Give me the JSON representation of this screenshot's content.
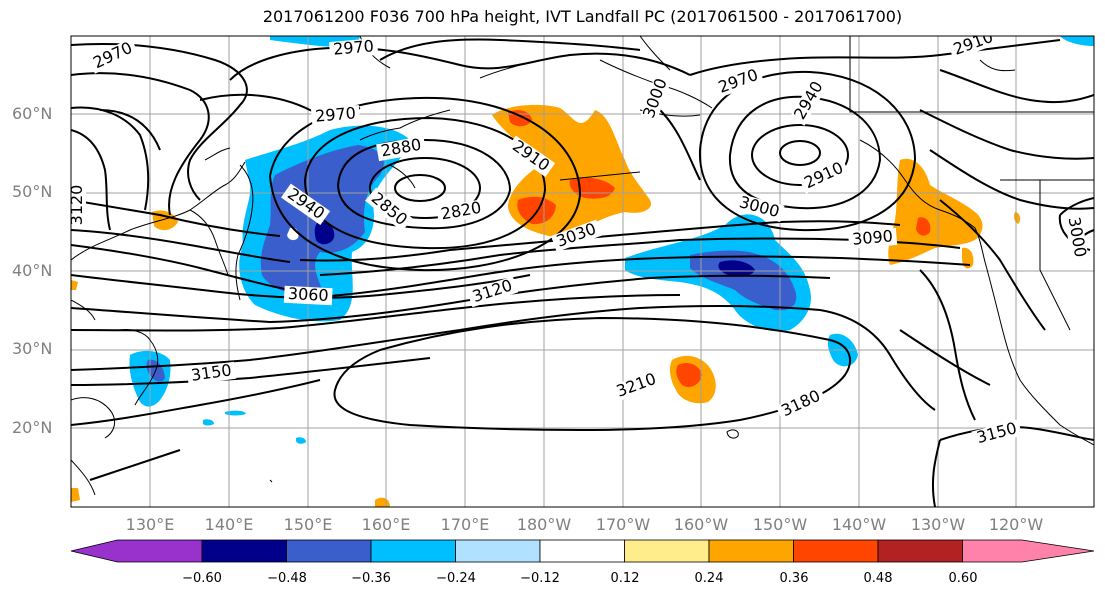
{
  "title": "2017061200 F036 700 hPa height, IVT Landfall PC (2017061500 - 2017061700)",
  "lat_labels": [
    "60°N",
    "50°N",
    "40°N",
    "30°N",
    "20°N"
  ],
  "lon_labels": [
    "130°E",
    "140°E",
    "150°E",
    "160°E",
    "170°E",
    "180°W",
    "170°W",
    "160°W",
    "150°W",
    "140°W",
    "130°W",
    "120°W"
  ],
  "contour_labels": [
    "2970",
    "2970",
    "2970",
    "2970",
    "2910",
    "2910",
    "2910",
    "2880",
    "2850",
    "2820",
    "2940",
    "2940",
    "3000",
    "3000",
    "3000",
    "3030",
    "3060",
    "3090",
    "3120",
    "3120",
    "3150",
    "3150",
    "3180",
    "3210"
  ],
  "colorbar": {
    "ticks": [
      "−0.60",
      "−0.48",
      "−0.36",
      "−0.24",
      "−0.12",
      "0.12",
      "0.24",
      "0.36",
      "0.48",
      "0.60"
    ],
    "colors": [
      "#9932cc",
      "#00008b",
      "#3a5fcd",
      "#00bfff",
      "#b0e2ff",
      "#ffffff",
      "#ffec8b",
      "#ffa500",
      "#ff4500",
      "#b22222",
      "#ff82ab"
    ]
  }
}
